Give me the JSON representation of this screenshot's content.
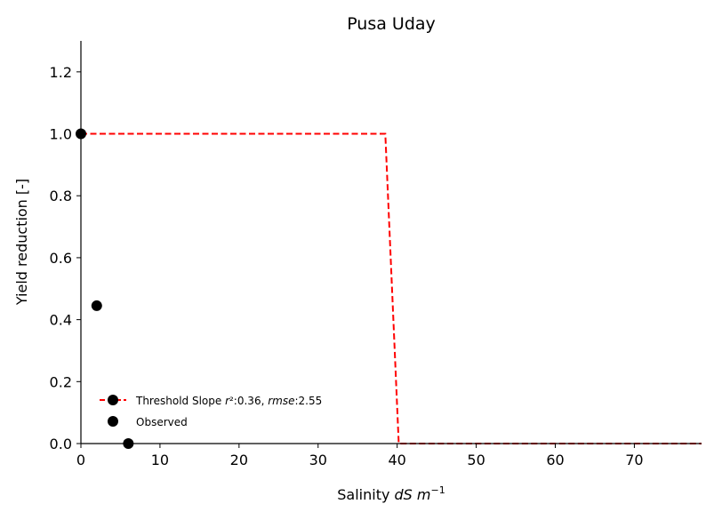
{
  "chart_data": {
    "type": "line",
    "title": "Pusa Uday",
    "xlabel": "Salinity dS m⁻¹",
    "xlabel_parts": {
      "plain": "Salinity ",
      "italic1": "dS",
      "space": " ",
      "italic2": "m",
      "sup": "−1"
    },
    "ylabel": "Yield reduction [-]",
    "xlim": [
      0,
      78.5
    ],
    "ylim": [
      0,
      1.3
    ],
    "xticks": [
      0,
      10,
      20,
      30,
      40,
      50,
      60,
      70
    ],
    "yticks": [
      0.0,
      0.2,
      0.4,
      0.6,
      0.8,
      1.0,
      1.2
    ],
    "xtick_labels": [
      "0",
      "10",
      "20",
      "30",
      "40",
      "50",
      "60",
      "70"
    ],
    "ytick_labels": [
      "0.0",
      "0.2",
      "0.4",
      "0.6",
      "0.8",
      "1.0",
      "1.2"
    ],
    "grid": false,
    "legend_position": "lower-left",
    "series": [
      {
        "name": "Threshold Slope r²:0.36, rmse:2.55",
        "legend_parts": {
          "prefix": "Threshold Slope ",
          "r": "r",
          "r_rest": "²:0.36, ",
          "rmse": "rmse",
          "rmse_rest": ":2.55"
        },
        "kind": "dashed-line",
        "color": "#ff0000",
        "x": [
          0,
          38.5,
          40.2,
          78.5
        ],
        "y": [
          1.0,
          1.0,
          0.0,
          0.0
        ]
      },
      {
        "name": "Observed",
        "kind": "scatter",
        "color": "#000000",
        "x": [
          0,
          2,
          6
        ],
        "y": [
          1.0,
          0.445,
          0.0
        ]
      }
    ]
  }
}
